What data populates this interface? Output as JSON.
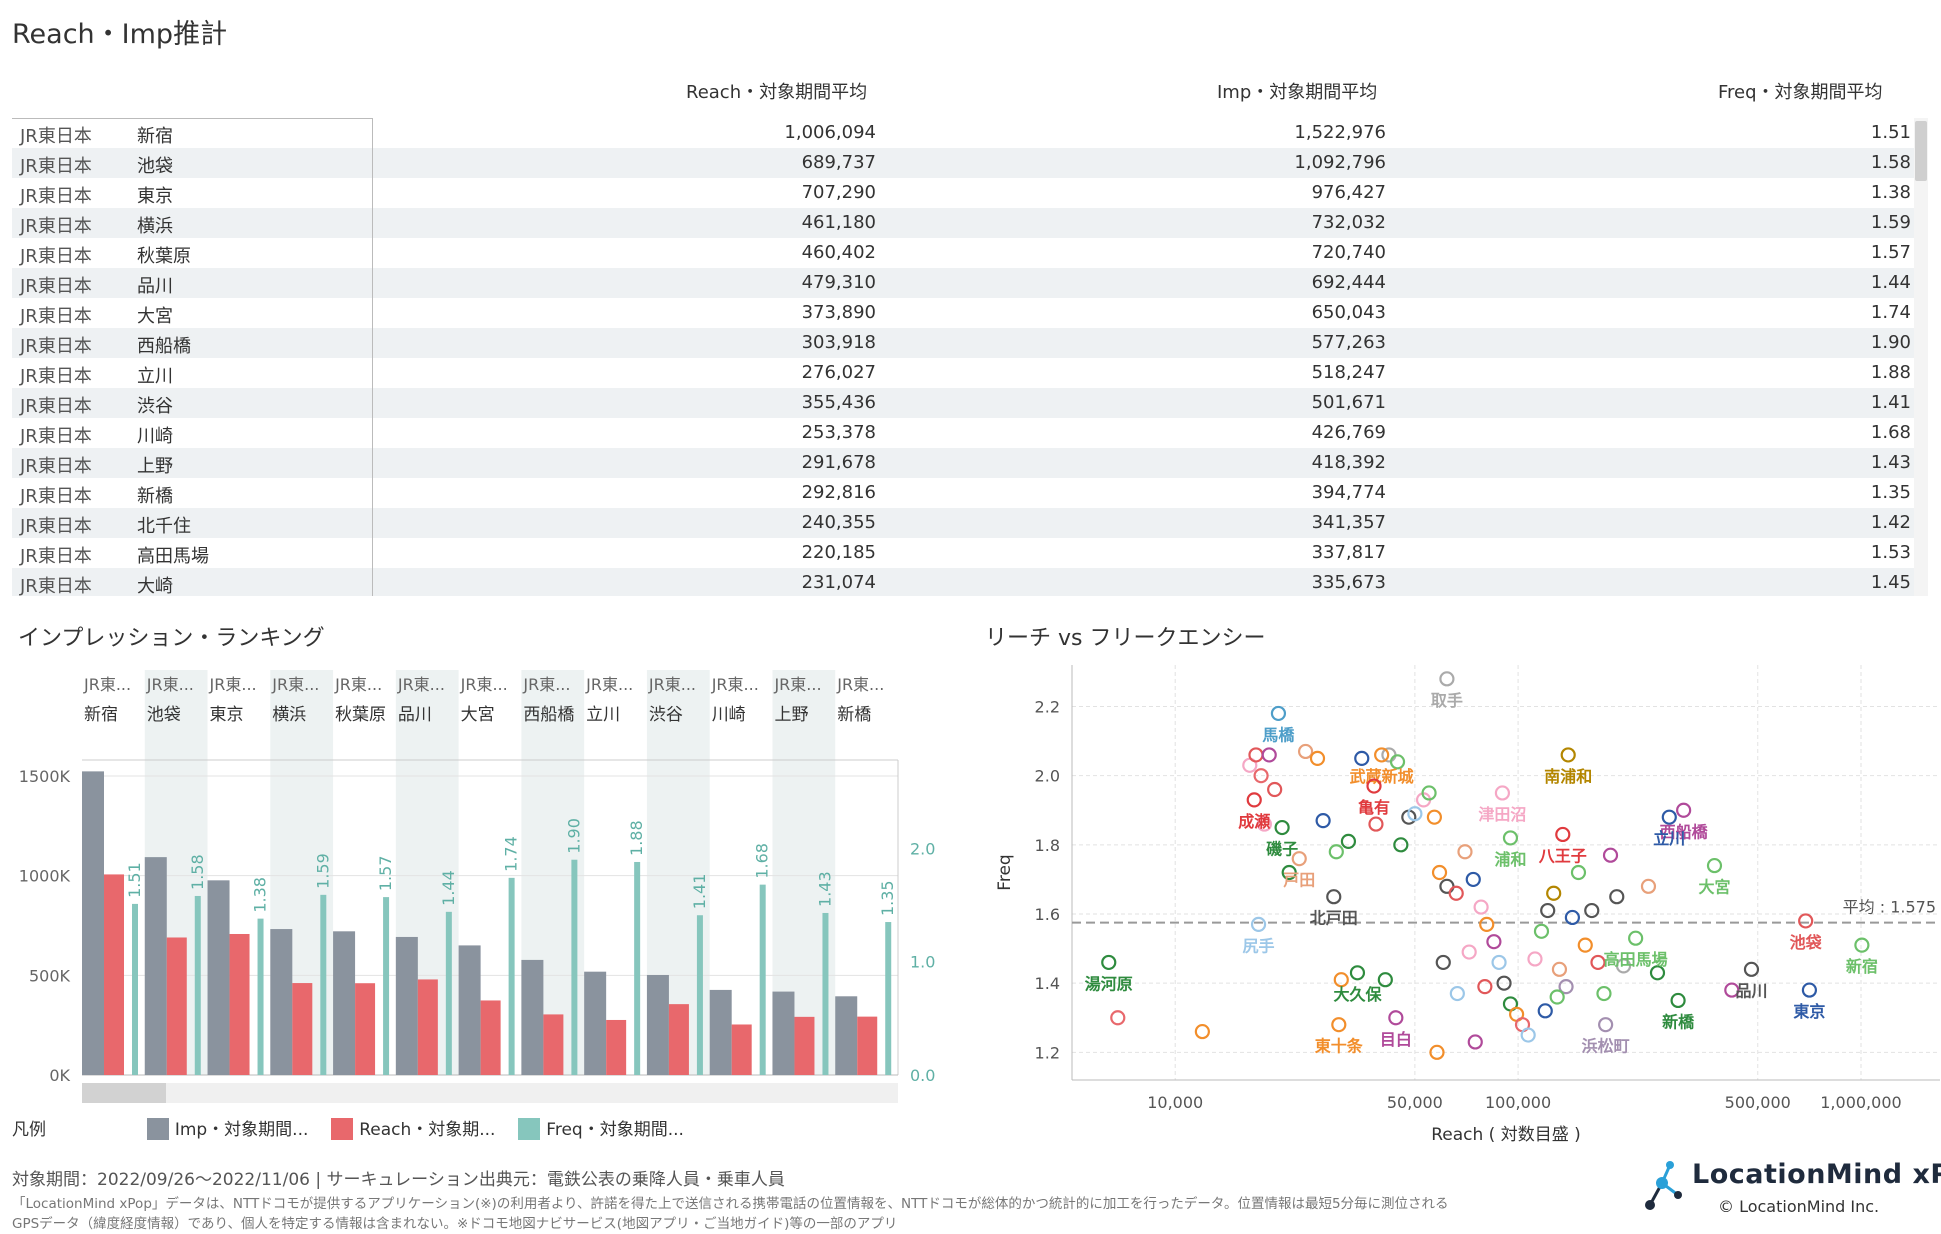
{
  "page_title": "Reach・Imp推計",
  "table": {
    "headers": [
      "Reach・対象期間平均",
      "Imp・対象期間平均",
      "Freq・対象期間平均"
    ],
    "rows": [
      {
        "operator": "JR東日本",
        "station": "新宿",
        "reach": "1,006,094",
        "imp": "1,522,976",
        "freq": "1.51"
      },
      {
        "operator": "JR東日本",
        "station": "池袋",
        "reach": "689,737",
        "imp": "1,092,796",
        "freq": "1.58"
      },
      {
        "operator": "JR東日本",
        "station": "東京",
        "reach": "707,290",
        "imp": "976,427",
        "freq": "1.38"
      },
      {
        "operator": "JR東日本",
        "station": "横浜",
        "reach": "461,180",
        "imp": "732,032",
        "freq": "1.59"
      },
      {
        "operator": "JR東日本",
        "station": "秋葉原",
        "reach": "460,402",
        "imp": "720,740",
        "freq": "1.57"
      },
      {
        "operator": "JR東日本",
        "station": "品川",
        "reach": "479,310",
        "imp": "692,444",
        "freq": "1.44"
      },
      {
        "operator": "JR東日本",
        "station": "大宮",
        "reach": "373,890",
        "imp": "650,043",
        "freq": "1.74"
      },
      {
        "operator": "JR東日本",
        "station": "西船橋",
        "reach": "303,918",
        "imp": "577,263",
        "freq": "1.90"
      },
      {
        "operator": "JR東日本",
        "station": "立川",
        "reach": "276,027",
        "imp": "518,247",
        "freq": "1.88"
      },
      {
        "operator": "JR東日本",
        "station": "渋谷",
        "reach": "355,436",
        "imp": "501,671",
        "freq": "1.41"
      },
      {
        "operator": "JR東日本",
        "station": "川崎",
        "reach": "253,378",
        "imp": "426,769",
        "freq": "1.68"
      },
      {
        "operator": "JR東日本",
        "station": "上野",
        "reach": "291,678",
        "imp": "418,392",
        "freq": "1.43"
      },
      {
        "operator": "JR東日本",
        "station": "新橋",
        "reach": "292,816",
        "imp": "394,774",
        "freq": "1.35"
      },
      {
        "operator": "JR東日本",
        "station": "北千住",
        "reach": "240,355",
        "imp": "341,357",
        "freq": "1.42"
      },
      {
        "operator": "JR東日本",
        "station": "高田馬場",
        "reach": "220,185",
        "imp": "337,817",
        "freq": "1.53"
      },
      {
        "operator": "JR東日本",
        "station": "大崎",
        "reach": "231,074",
        "imp": "335,673",
        "freq": "1.45"
      }
    ]
  },
  "ranking_title": "インプレッション・ランキング",
  "scatter_title": "リーチ vs フリークエンシー",
  "legend": {
    "label": "凡例",
    "items": [
      {
        "label": "Imp・対象期間...",
        "color": "#8a939e"
      },
      {
        "label": "Reach・対象期...",
        "color": "#e8686c"
      },
      {
        "label": "Freq・対象期間...",
        "color": "#86c6bd"
      }
    ]
  },
  "colors": {
    "imp": "#8a939e",
    "reach": "#e8686c",
    "freq": "#86c6bd",
    "avg_line": "#999999"
  },
  "chart_data": [
    {
      "type": "bar",
      "title": "インプレッション・ランキング",
      "category_header": "JR東...",
      "categories": [
        "新宿",
        "池袋",
        "東京",
        "横浜",
        "秋葉原",
        "品川",
        "大宮",
        "西船橋",
        "立川",
        "渋谷",
        "川崎",
        "上野",
        "新橋"
      ],
      "series": [
        {
          "name": "Imp・対象期間...",
          "axis": "left",
          "values": [
            1522976,
            1092796,
            976427,
            732032,
            720740,
            692444,
            650043,
            577263,
            518247,
            501671,
            426769,
            418392,
            394774
          ]
        },
        {
          "name": "Reach・対象期...",
          "axis": "left",
          "values": [
            1006094,
            689737,
            707290,
            461180,
            460402,
            479310,
            373890,
            303918,
            276027,
            355436,
            253378,
            291678,
            292816
          ]
        },
        {
          "name": "Freq・対象期間...",
          "axis": "right",
          "values": [
            1.51,
            1.58,
            1.38,
            1.59,
            1.57,
            1.44,
            1.74,
            1.9,
            1.88,
            1.41,
            1.68,
            1.43,
            1.35
          ]
        }
      ],
      "left_axis": {
        "ticks": [
          "0K",
          "500K",
          "1000K",
          "1500K"
        ],
        "tick_values": [
          0,
          500000,
          1000000,
          1500000
        ],
        "ylim": [
          0,
          1580000
        ]
      },
      "right_axis": {
        "ticks": [
          "0.0",
          "1.0",
          "2.0"
        ],
        "tick_values": [
          0,
          1,
          2
        ],
        "ylim": [
          0,
          2.78
        ]
      },
      "grid": true
    },
    {
      "type": "scatter",
      "title": "リーチ vs フリークエンシー",
      "xlabel": "Reach ( 対数目盛 )",
      "ylabel": "Freq",
      "xscale": "log",
      "xlim": [
        5000,
        1700000
      ],
      "ylim": [
        1.12,
        2.32
      ],
      "xticks": [
        {
          "v": 10000,
          "label": "10,000"
        },
        {
          "v": 50000,
          "label": "50,000"
        },
        {
          "v": 100000,
          "label": "100,000"
        },
        {
          "v": 500000,
          "label": "500,000"
        },
        {
          "v": 1000000,
          "label": "1,000,000"
        }
      ],
      "yticks": [
        {
          "v": 1.2,
          "label": "1.2"
        },
        {
          "v": 1.4,
          "label": "1.4"
        },
        {
          "v": 1.6,
          "label": "1.6"
        },
        {
          "v": 1.8,
          "label": "1.8"
        },
        {
          "v": 2.0,
          "label": "2.0"
        },
        {
          "v": 2.2,
          "label": "2.2"
        }
      ],
      "average": {
        "label": "平均 : 1.575",
        "value": 1.575
      },
      "labeled_points": [
        {
          "label": "新宿",
          "x": 1006094,
          "y": 1.51,
          "color": "#6cc06a"
        },
        {
          "label": "池袋",
          "x": 689737,
          "y": 1.58,
          "color": "#e15759"
        },
        {
          "label": "東京",
          "x": 707290,
          "y": 1.38,
          "color": "#2e5aa6"
        },
        {
          "label": "品川",
          "x": 479310,
          "y": 1.44,
          "color": "#555555"
        },
        {
          "label": "大宮",
          "x": 373890,
          "y": 1.74,
          "color": "#6cc06a"
        },
        {
          "label": "西船橋",
          "x": 303918,
          "y": 1.9,
          "color": "#b04a9a"
        },
        {
          "label": "立川",
          "x": 276027,
          "y": 1.88,
          "color": "#2e5aa6"
        },
        {
          "label": "新橋",
          "x": 292816,
          "y": 1.35,
          "color": "#2e8b3e"
        },
        {
          "label": "高田馬場",
          "x": 220185,
          "y": 1.53,
          "color": "#6cc06a"
        },
        {
          "label": "浜松町",
          "x": 180000,
          "y": 1.28,
          "color": "#a38fb0"
        },
        {
          "label": "八王子",
          "x": 135000,
          "y": 1.83,
          "color": "#e03a3e"
        },
        {
          "label": "南浦和",
          "x": 140000,
          "y": 2.06,
          "color": "#b38600"
        },
        {
          "label": "浦和",
          "x": 95000,
          "y": 1.82,
          "color": "#6cc06a"
        },
        {
          "label": "津田沼",
          "x": 90000,
          "y": 1.95,
          "color": "#f5a7c5"
        },
        {
          "label": "取手",
          "x": 62000,
          "y": 2.28,
          "color": "#aaaaaa"
        },
        {
          "label": "武蔵新城",
          "x": 40000,
          "y": 2.06,
          "color": "#f28e2b"
        },
        {
          "label": "亀有",
          "x": 38000,
          "y": 1.97,
          "color": "#e03a3e"
        },
        {
          "label": "馬橋",
          "x": 20000,
          "y": 2.18,
          "color": "#4e9ec9"
        },
        {
          "label": "成瀬",
          "x": 17000,
          "y": 1.93,
          "color": "#e03a3e"
        },
        {
          "label": "磯子",
          "x": 20500,
          "y": 1.85,
          "color": "#2e8b3e"
        },
        {
          "label": "戸田",
          "x": 23000,
          "y": 1.76,
          "color": "#e8a07a"
        },
        {
          "label": "北戸田",
          "x": 29000,
          "y": 1.65,
          "color": "#555555"
        },
        {
          "label": "尻手",
          "x": 17500,
          "y": 1.57,
          "color": "#9cc7e8"
        },
        {
          "label": "大久保",
          "x": 34000,
          "y": 1.43,
          "color": "#2e8b3e"
        },
        {
          "label": "東十条",
          "x": 30000,
          "y": 1.28,
          "color": "#f28e2b"
        },
        {
          "label": "目白",
          "x": 44000,
          "y": 1.3,
          "color": "#b04a9a"
        },
        {
          "label": "湯河原",
          "x": 6400,
          "y": 1.46,
          "color": "#2e8b3e"
        }
      ],
      "unlabeled_points": [
        {
          "x": 6800,
          "y": 1.3,
          "color": "#e8686c"
        },
        {
          "x": 12000,
          "y": 1.26,
          "color": "#f28e2b"
        },
        {
          "x": 16500,
          "y": 2.03,
          "color": "#f5a7c5"
        },
        {
          "x": 17200,
          "y": 2.06,
          "color": "#e15759"
        },
        {
          "x": 17800,
          "y": 2.0,
          "color": "#e8686c"
        },
        {
          "x": 18200,
          "y": 1.86,
          "color": "#f5a7c5"
        },
        {
          "x": 18800,
          "y": 2.06,
          "color": "#b04a9a"
        },
        {
          "x": 19500,
          "y": 1.96,
          "color": "#e15759"
        },
        {
          "x": 21500,
          "y": 1.72,
          "color": "#2e8b3e"
        },
        {
          "x": 24000,
          "y": 2.07,
          "color": "#e8a07a"
        },
        {
          "x": 26000,
          "y": 2.05,
          "color": "#f28e2b"
        },
        {
          "x": 27000,
          "y": 1.87,
          "color": "#2e5aa6"
        },
        {
          "x": 29500,
          "y": 1.78,
          "color": "#6cc06a"
        },
        {
          "x": 32000,
          "y": 1.81,
          "color": "#2e8b3e"
        },
        {
          "x": 35000,
          "y": 2.05,
          "color": "#2e5aa6"
        },
        {
          "x": 38500,
          "y": 1.86,
          "color": "#e15759"
        },
        {
          "x": 42000,
          "y": 2.06,
          "color": "#aaaaaa"
        },
        {
          "x": 44500,
          "y": 2.04,
          "color": "#6cc06a"
        },
        {
          "x": 45500,
          "y": 1.8,
          "color": "#2e8b3e"
        },
        {
          "x": 48000,
          "y": 1.88,
          "color": "#555555"
        },
        {
          "x": 50000,
          "y": 1.89,
          "color": "#9cc7e8"
        },
        {
          "x": 53000,
          "y": 1.93,
          "color": "#f5a7c5"
        },
        {
          "x": 55000,
          "y": 1.95,
          "color": "#6cc06a"
        },
        {
          "x": 57000,
          "y": 1.88,
          "color": "#f28e2b"
        },
        {
          "x": 59000,
          "y": 1.72,
          "color": "#f28e2b"
        },
        {
          "x": 62000,
          "y": 1.68,
          "color": "#555555"
        },
        {
          "x": 66000,
          "y": 1.66,
          "color": "#e15759"
        },
        {
          "x": 70000,
          "y": 1.78,
          "color": "#e8a07a"
        },
        {
          "x": 74000,
          "y": 1.7,
          "color": "#2e5aa6"
        },
        {
          "x": 78000,
          "y": 1.62,
          "color": "#f5a7c5"
        },
        {
          "x": 81000,
          "y": 1.57,
          "color": "#f28e2b"
        },
        {
          "x": 85000,
          "y": 1.52,
          "color": "#b04a9a"
        },
        {
          "x": 88000,
          "y": 1.46,
          "color": "#9cc7e8"
        },
        {
          "x": 91000,
          "y": 1.4,
          "color": "#555555"
        },
        {
          "x": 95000,
          "y": 1.34,
          "color": "#2e8b3e"
        },
        {
          "x": 99000,
          "y": 1.31,
          "color": "#f28e2b"
        },
        {
          "x": 103000,
          "y": 1.28,
          "color": "#e8686c"
        },
        {
          "x": 107000,
          "y": 1.25,
          "color": "#9cc7e8"
        },
        {
          "x": 112000,
          "y": 1.47,
          "color": "#f5a7c5"
        },
        {
          "x": 117000,
          "y": 1.55,
          "color": "#6cc06a"
        },
        {
          "x": 122000,
          "y": 1.61,
          "color": "#555555"
        },
        {
          "x": 127000,
          "y": 1.66,
          "color": "#b38600"
        },
        {
          "x": 132000,
          "y": 1.44,
          "color": "#e8a07a"
        },
        {
          "x": 138000,
          "y": 1.39,
          "color": "#a38fb0"
        },
        {
          "x": 144000,
          "y": 1.59,
          "color": "#2e5aa6"
        },
        {
          "x": 150000,
          "y": 1.72,
          "color": "#6cc06a"
        },
        {
          "x": 157000,
          "y": 1.51,
          "color": "#f28e2b"
        },
        {
          "x": 164000,
          "y": 1.61,
          "color": "#555555"
        },
        {
          "x": 171000,
          "y": 1.46,
          "color": "#e15759"
        },
        {
          "x": 178000,
          "y": 1.37,
          "color": "#6cc06a"
        },
        {
          "x": 186000,
          "y": 1.77,
          "color": "#b04a9a"
        },
        {
          "x": 194000,
          "y": 1.65,
          "color": "#555555"
        },
        {
          "x": 203000,
          "y": 1.45,
          "color": "#aaaaaa"
        },
        {
          "x": 240000,
          "y": 1.68,
          "color": "#e8a07a"
        },
        {
          "x": 255000,
          "y": 1.43,
          "color": "#2e8b3e"
        },
        {
          "x": 420000,
          "y": 1.38,
          "color": "#b04a9a"
        },
        {
          "x": 30500,
          "y": 1.41,
          "color": "#f28e2b"
        },
        {
          "x": 41000,
          "y": 1.41,
          "color": "#2e8b3e"
        },
        {
          "x": 60500,
          "y": 1.46,
          "color": "#555555"
        },
        {
          "x": 72000,
          "y": 1.49,
          "color": "#f5a7c5"
        },
        {
          "x": 80000,
          "y": 1.39,
          "color": "#e15759"
        },
        {
          "x": 120000,
          "y": 1.32,
          "color": "#2e5aa6"
        },
        {
          "x": 130000,
          "y": 1.36,
          "color": "#6cc06a"
        },
        {
          "x": 66500,
          "y": 1.37,
          "color": "#9cc7e8"
        },
        {
          "x": 58000,
          "y": 1.2,
          "color": "#f28e2b"
        },
        {
          "x": 75000,
          "y": 1.23,
          "color": "#b04a9a"
        }
      ]
    }
  ],
  "footer": {
    "period": "対象期間：2022/09/26～2022/11/06 | サーキュレーション出典元：電鉄公表の乗降人員・乗車人員",
    "note1": "「LocationMind xPop」データは、NTTドコモが提供するアプリケーション(※)の利用者より、許諾を得た上で送信される携帯電話の位置情報を、NTTドコモが総体的かつ統計的に加工を行ったデータ。位置情報は最短5分毎に測位される",
    "note2": "GPSデータ（緯度経度情報）であり、個人を特定する情報は含まれない。※ドコモ地図ナビサービス(地図アプリ・ご当地ガイド)等の一部のアプリ"
  },
  "logo": {
    "name": "LocationMind xPop",
    "copyright": "© LocationMind Inc."
  }
}
